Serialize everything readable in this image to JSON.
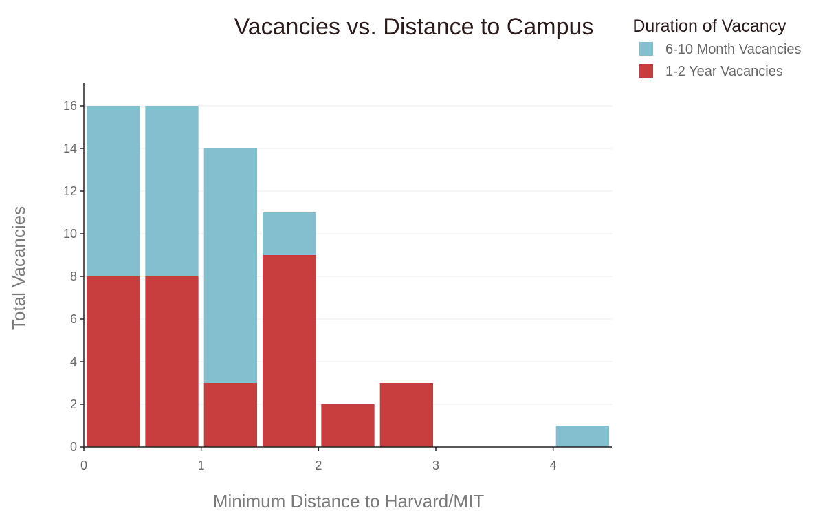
{
  "colors": {
    "short": "#84bfcf",
    "long": "#c83e3e"
  },
  "chart_data": {
    "type": "bar",
    "stacked": true,
    "title": "Vacancies vs. Distance to Campus",
    "xlabel": "Minimum Distance to Harvard/MIT",
    "ylabel": "Total Vacancies",
    "xlim": [
      0,
      4.5
    ],
    "ylim": [
      0,
      17
    ],
    "xticks": [
      0,
      1,
      2,
      3,
      4
    ],
    "yticks": [
      0,
      2,
      4,
      6,
      8,
      10,
      12,
      14,
      16
    ],
    "bin_width": 0.5,
    "bins": [
      0,
      0.5,
      1.0,
      1.5,
      2.0,
      2.5,
      3.0,
      3.5,
      4.0
    ],
    "grid": true,
    "legend_title": "Duration of Vacancy",
    "legend_position": "top-right",
    "series": [
      {
        "name": "1-2 Year Vacancies",
        "color_key": "long",
        "values": [
          8,
          8,
          3,
          9,
          2,
          3,
          0,
          0,
          0
        ]
      },
      {
        "name": "6-10 Month Vacancies",
        "color_key": "short",
        "values": [
          8,
          8,
          11,
          2,
          0,
          0,
          0,
          0,
          1
        ]
      }
    ],
    "legend_items": [
      {
        "label": "6-10 Month Vacancies",
        "color_key": "short"
      },
      {
        "label": "1-2 Year Vacancies",
        "color_key": "long"
      }
    ]
  }
}
